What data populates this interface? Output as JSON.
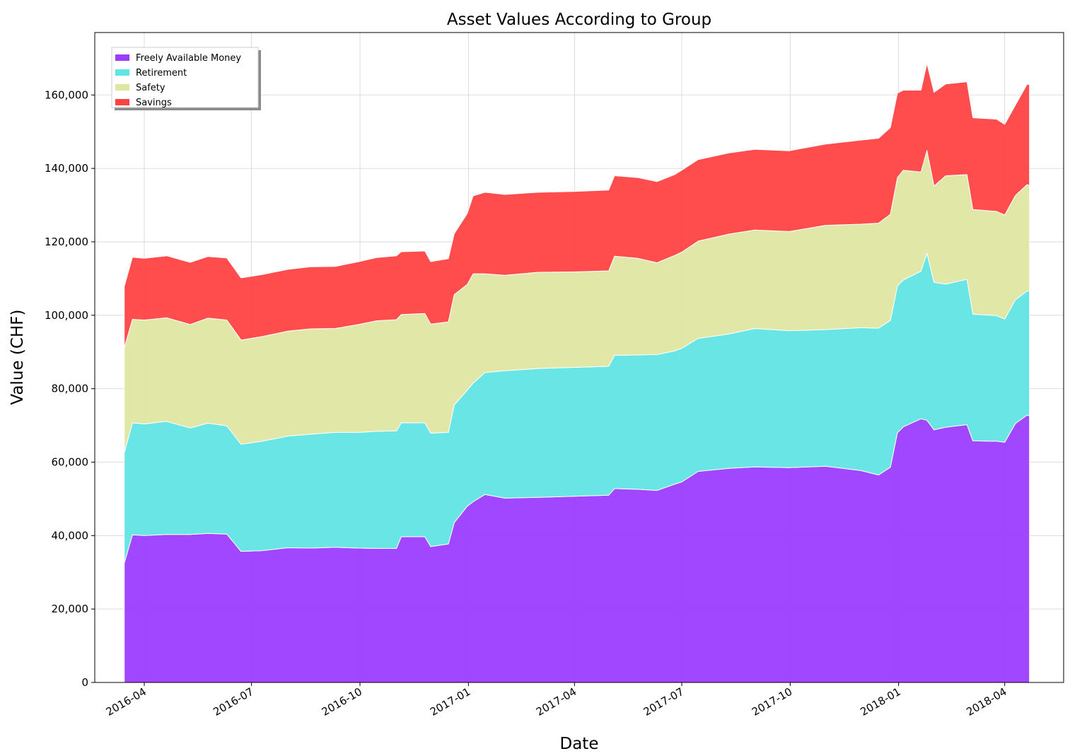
{
  "chart_data": {
    "type": "area",
    "stacked": true,
    "title": "Asset Values According to Group",
    "xlabel": "Date",
    "ylabel": "Value (CHF)",
    "ylim": [
      0,
      177000
    ],
    "xlim": [
      "2016-02-19",
      "2018-05-21"
    ],
    "grid": true,
    "legend_position": "top-left",
    "yticks": [
      0,
      20000,
      40000,
      60000,
      80000,
      100000,
      120000,
      140000,
      160000
    ],
    "ytick_labels": [
      "0",
      "20,000",
      "40,000",
      "60,000",
      "80,000",
      "100,000",
      "120,000",
      "140,000",
      "160,000"
    ],
    "xticks": [
      "2016-04-01",
      "2016-07-01",
      "2016-10-01",
      "2017-01-01",
      "2017-04-01",
      "2017-07-01",
      "2017-10-01",
      "2018-01-01",
      "2018-04-01"
    ],
    "xtick_labels": [
      "2016-04",
      "2016-07",
      "2016-10",
      "2017-01",
      "2017-04",
      "2017-07",
      "2017-10",
      "2018-01",
      "2018-04"
    ],
    "x": [
      "2016-03-15",
      "2016-03-22",
      "2016-04-01",
      "2016-04-20",
      "2016-05-10",
      "2016-05-25",
      "2016-06-10",
      "2016-06-22",
      "2016-06-23",
      "2016-07-10",
      "2016-08-01",
      "2016-08-20",
      "2016-09-10",
      "2016-09-30",
      "2016-10-15",
      "2016-11-01",
      "2016-11-05",
      "2016-11-25",
      "2016-11-30",
      "2016-12-15",
      "2016-12-20",
      "2016-12-31",
      "2017-01-05",
      "2017-01-15",
      "2017-02-01",
      "2017-03-01",
      "2017-03-31",
      "2017-04-30",
      "2017-05-05",
      "2017-05-25",
      "2017-06-10",
      "2017-06-25",
      "2017-07-01",
      "2017-07-15",
      "2017-08-10",
      "2017-09-01",
      "2017-09-30",
      "2017-10-31",
      "2017-11-30",
      "2017-12-15",
      "2017-12-25",
      "2017-12-31",
      "2018-01-05",
      "2018-01-20",
      "2018-01-25",
      "2018-01-31",
      "2018-02-10",
      "2018-02-28",
      "2018-03-05",
      "2018-03-25",
      "2018-04-01",
      "2018-04-10",
      "2018-04-20",
      "2018-04-22"
    ],
    "series": [
      {
        "name": "Freely Available Money",
        "color": "#9b3dff",
        "values": [
          32500,
          40200,
          40000,
          40300,
          40300,
          40600,
          40400,
          35700,
          35700,
          35900,
          36700,
          36600,
          36800,
          36600,
          36500,
          36500,
          39700,
          39700,
          37000,
          37700,
          43500,
          48000,
          49200,
          51200,
          50200,
          50400,
          50700,
          51000,
          52800,
          52600,
          52300,
          54000,
          54600,
          57500,
          58300,
          58700,
          58500,
          58900,
          57700,
          56500,
          58600,
          68000,
          69600,
          71800,
          71400,
          68800,
          69500,
          70200,
          65800,
          65700,
          65400,
          70500,
          72800,
          72600
        ]
      },
      {
        "name": "Retirement",
        "color": "#61e4e4",
        "values": [
          30000,
          30500,
          30400,
          30800,
          29000,
          30000,
          29500,
          29200,
          29200,
          29800,
          30400,
          31000,
          31300,
          31500,
          31900,
          32000,
          31000,
          31000,
          30900,
          30400,
          32100,
          31600,
          32300,
          33200,
          34700,
          35100,
          35100,
          35100,
          36300,
          36600,
          37000,
          36300,
          36400,
          36200,
          36600,
          37700,
          37300,
          37200,
          38900,
          40000,
          40000,
          40000,
          40000,
          40200,
          45500,
          40200,
          39000,
          39600,
          34500,
          34200,
          33600,
          33700,
          33800,
          34000
        ]
      },
      {
        "name": "Safety",
        "color": "#dfe6a2",
        "values": [
          28600,
          28200,
          28300,
          28200,
          28200,
          28600,
          28800,
          28400,
          28400,
          28500,
          28600,
          28700,
          28300,
          29400,
          30100,
          30300,
          29500,
          29800,
          29700,
          30100,
          30000,
          28800,
          29800,
          26900,
          26000,
          26200,
          26000,
          26000,
          27000,
          26300,
          25000,
          26000,
          26200,
          26500,
          27200,
          26800,
          27000,
          28400,
          28200,
          28600,
          28900,
          29500,
          29900,
          27000,
          28000,
          26200,
          29500,
          28500,
          28500,
          28400,
          28300,
          28400,
          29000,
          28700
        ]
      },
      {
        "name": "Savings",
        "color": "#ff4242",
        "values": [
          16700,
          16900,
          16800,
          16900,
          16900,
          16800,
          16900,
          16900,
          16900,
          16900,
          16800,
          16900,
          16900,
          17100,
          17200,
          17400,
          17100,
          17000,
          17000,
          17200,
          16600,
          19300,
          21200,
          22200,
          22000,
          21800,
          21900,
          22000,
          21900,
          22000,
          22100,
          22000,
          22300,
          22200,
          22100,
          22000,
          22000,
          22100,
          22900,
          23100,
          23600,
          23000,
          21800,
          22300,
          23700,
          25500,
          25000,
          25300,
          25000,
          25100,
          24700,
          24600,
          27300,
          27600
        ]
      }
    ]
  }
}
